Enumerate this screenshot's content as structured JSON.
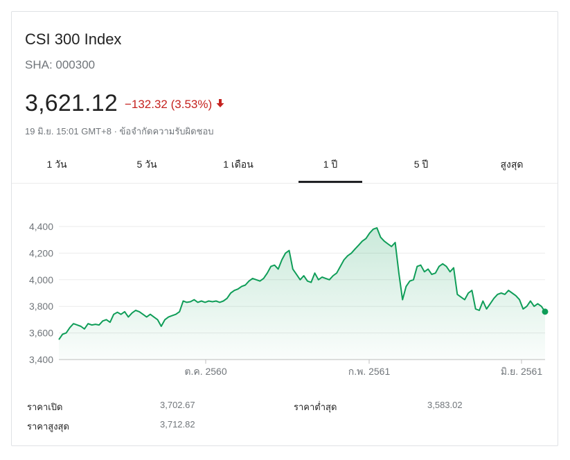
{
  "header": {
    "title": "CSI 300 Index",
    "ticker": "SHA: 000300",
    "price": "3,621.12",
    "change": "−132.32 (3.53%)",
    "meta_time": "19 มิ.ย. 15:01 GMT+8",
    "meta_disclaimer": "ข้อจำกัดความรับผิดชอบ"
  },
  "colors": {
    "accent_line": "#0f9d58",
    "negative": "#c5221f",
    "grid": "#ebebeb"
  },
  "tabs": [
    {
      "label": "1 วัน",
      "active": false
    },
    {
      "label": "5 วัน",
      "active": false
    },
    {
      "label": "1 เดือน",
      "active": false
    },
    {
      "label": "1 ปี",
      "active": true
    },
    {
      "label": "5 ปี",
      "active": false
    },
    {
      "label": "สูงสุด",
      "active": false
    }
  ],
  "chart_data": {
    "type": "area",
    "title": "",
    "ylim": [
      3400,
      4400
    ],
    "y_ticks": [
      "3,400",
      "3,600",
      "3,800",
      "4,000",
      "4,200",
      "4,400"
    ],
    "x_ticks": [
      "ต.ค. 2560",
      "ก.พ. 2561",
      "มิ.ย. 2561"
    ],
    "grid": true,
    "series": [
      {
        "values": [
          3550,
          3590,
          3600,
          3640,
          3670,
          3660,
          3650,
          3630,
          3670,
          3660,
          3665,
          3660,
          3690,
          3700,
          3680,
          3740,
          3755,
          3740,
          3760,
          3720,
          3750,
          3770,
          3760,
          3740,
          3720,
          3740,
          3720,
          3700,
          3650,
          3700,
          3720,
          3730,
          3740,
          3760,
          3840,
          3830,
          3835,
          3850,
          3830,
          3840,
          3830,
          3840,
          3835,
          3840,
          3830,
          3840,
          3860,
          3900,
          3920,
          3930,
          3950,
          3960,
          3990,
          4010,
          4000,
          3990,
          4010,
          4050,
          4100,
          4110,
          4080,
          4150,
          4200,
          4220,
          4080,
          4040,
          4000,
          4030,
          3990,
          3980,
          4050,
          4000,
          4020,
          4010,
          4000,
          4030,
          4050,
          4100,
          4150,
          4180,
          4200,
          4230,
          4260,
          4290,
          4310,
          4350,
          4380,
          4390,
          4320,
          4290,
          4270,
          4250,
          4280,
          4050,
          3850,
          3950,
          3990,
          4000,
          4100,
          4110,
          4060,
          4080,
          4040,
          4050,
          4100,
          4120,
          4100,
          4060,
          4090,
          3890,
          3870,
          3850,
          3900,
          3920,
          3780,
          3770,
          3840,
          3780,
          3820,
          3860,
          3890,
          3900,
          3890,
          3920,
          3900,
          3880,
          3850,
          3780,
          3800,
          3840,
          3800,
          3820,
          3800,
          3760
        ]
      }
    ]
  },
  "stats": {
    "open_label": "ราคาเปิด",
    "open_value": "3,702.67",
    "high_label": "ราคาสูงสุด",
    "high_value": "3,712.82",
    "low_label": "ราคาต่ำสุด",
    "low_value": "3,583.02"
  }
}
